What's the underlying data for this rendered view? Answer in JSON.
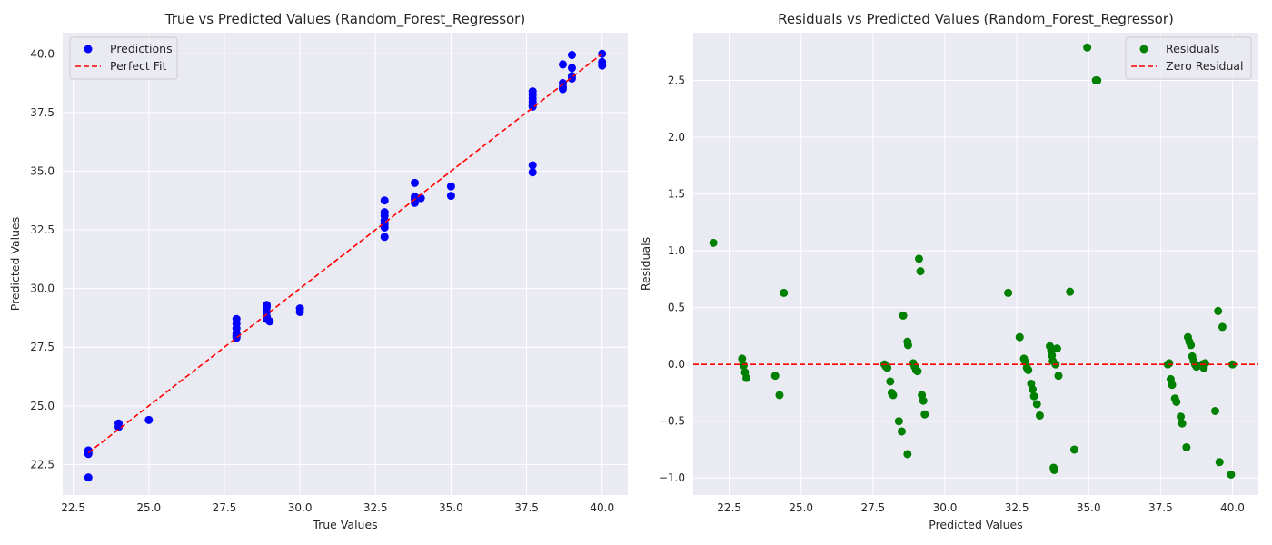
{
  "colors": {
    "axes_background": "#EAEAF2",
    "grid": "#FFFFFF",
    "predictions": "#0000FF",
    "residuals": "#008000",
    "reference_line": "#FF0000",
    "text": "#262626"
  },
  "chart_data": [
    {
      "type": "scatter",
      "title": "True vs Predicted Values (Random_Forest_Regressor)",
      "xlabel": "True Values",
      "ylabel": "Predicted Values",
      "xlim": [
        22.15,
        40.85
      ],
      "ylim": [
        21.2,
        40.9
      ],
      "xticks": [
        "22.5",
        "25.0",
        "27.5",
        "30.0",
        "32.5",
        "35.0",
        "37.5",
        "40.0"
      ],
      "yticks": [
        "22.5",
        "25.0",
        "27.5",
        "30.0",
        "32.5",
        "35.0",
        "37.5",
        "40.0"
      ],
      "grid": true,
      "legend_position": "top-left",
      "legend": [
        "Predictions",
        "Perfect Fit"
      ],
      "series": [
        {
          "name": "Predictions",
          "color": "#0000FF",
          "x": [
            23.0,
            23.0,
            23.0,
            23.0,
            24.0,
            24.0,
            25.0,
            27.9,
            27.9,
            27.9,
            27.9,
            27.9,
            27.9,
            27.9,
            28.9,
            28.9,
            28.9,
            28.9,
            28.9,
            29.0,
            30.0,
            30.0,
            32.8,
            32.8,
            32.8,
            32.8,
            32.8,
            32.8,
            32.8,
            33.8,
            33.8,
            33.8,
            33.8,
            34.0,
            35.0,
            35.0,
            37.7,
            37.7,
            37.7,
            37.7,
            37.7,
            37.7,
            37.7,
            37.7,
            38.7,
            38.7,
            38.7,
            38.7,
            39.0,
            39.0,
            39.0,
            39.0,
            40.0,
            40.0,
            40.0
          ],
          "y": [
            23.1,
            23.0,
            22.95,
            21.95,
            24.25,
            24.1,
            24.4,
            28.7,
            28.5,
            28.3,
            28.1,
            28.0,
            27.95,
            27.9,
            29.3,
            29.2,
            29.0,
            28.8,
            28.7,
            28.6,
            29.15,
            29.0,
            33.75,
            33.25,
            33.1,
            32.9,
            32.75,
            32.6,
            32.2,
            34.5,
            33.9,
            33.8,
            33.65,
            33.85,
            34.35,
            33.95,
            38.4,
            38.25,
            38.1,
            37.95,
            37.8,
            37.75,
            35.25,
            34.95,
            39.55,
            38.75,
            38.6,
            38.5,
            39.95,
            39.4,
            39.05,
            38.95,
            40.0,
            39.65,
            39.5
          ]
        },
        {
          "name": "Perfect Fit",
          "type": "line",
          "color": "#FF0000",
          "dashed": true,
          "x": [
            23.0,
            40.0
          ],
          "y": [
            23.0,
            40.0
          ]
        }
      ]
    },
    {
      "type": "scatter",
      "title": "Residuals vs Predicted Values (Random_Forest_Regressor)",
      "xlabel": "Predicted Values",
      "ylabel": "Residuals",
      "xlim": [
        21.25,
        40.9
      ],
      "ylim": [
        -1.15,
        2.92
      ],
      "xticks": [
        "22.5",
        "25.0",
        "27.5",
        "30.0",
        "32.5",
        "35.0",
        "37.5",
        "40.0"
      ],
      "yticks": [
        "−1.0",
        "−0.5",
        "0.0",
        "0.5",
        "1.0",
        "1.5",
        "2.0",
        "2.5"
      ],
      "grid": true,
      "legend_position": "top-right",
      "legend": [
        "Residuals",
        "Zero Residual"
      ],
      "series": [
        {
          "name": "Residuals",
          "color": "#008000",
          "x": [
            21.95,
            22.95,
            23.0,
            23.05,
            23.1,
            24.1,
            24.25,
            24.4,
            27.9,
            27.95,
            28.0,
            28.1,
            28.15,
            28.2,
            28.4,
            28.5,
            28.55,
            28.7,
            28.7,
            28.72,
            28.9,
            28.95,
            29.0,
            29.05,
            29.1,
            29.15,
            29.2,
            29.25,
            29.3,
            32.2,
            32.6,
            32.75,
            32.8,
            32.85,
            32.9,
            33.0,
            33.05,
            33.1,
            33.2,
            33.3,
            33.65,
            33.7,
            33.72,
            33.75,
            33.78,
            33.8,
            33.85,
            33.9,
            33.95,
            34.35,
            34.5,
            34.95,
            35.25,
            35.3,
            37.75,
            37.8,
            37.85,
            37.9,
            38.0,
            38.05,
            38.2,
            38.25,
            38.4,
            38.45,
            38.5,
            38.55,
            38.6,
            38.65,
            38.7,
            38.75,
            38.95,
            39.0,
            39.05,
            39.4,
            39.5,
            39.55,
            39.65,
            39.95,
            40.0
          ],
          "y": [
            1.07,
            0.05,
            -0.01,
            -0.07,
            -0.12,
            -0.1,
            -0.27,
            0.63,
            0.0,
            -0.02,
            -0.03,
            -0.15,
            -0.25,
            -0.27,
            -0.5,
            -0.59,
            0.43,
            -0.79,
            0.2,
            0.17,
            0.01,
            -0.02,
            -0.05,
            -0.06,
            0.93,
            0.82,
            -0.27,
            -0.32,
            -0.44,
            0.63,
            0.24,
            0.05,
            0.02,
            -0.03,
            -0.05,
            -0.17,
            -0.22,
            -0.28,
            -0.35,
            -0.45,
            0.16,
            0.12,
            0.08,
            0.03,
            -0.91,
            -0.93,
            0.0,
            0.14,
            -0.1,
            0.64,
            -0.75,
            2.79,
            2.5,
            2.5,
            0.0,
            0.01,
            -0.13,
            -0.18,
            -0.3,
            -0.33,
            -0.46,
            -0.52,
            -0.73,
            0.24,
            0.2,
            0.17,
            0.07,
            0.03,
            0.0,
            -0.02,
            0.0,
            -0.03,
            0.01,
            -0.41,
            0.47,
            -0.86,
            0.33,
            -0.97,
            0.0
          ]
        },
        {
          "name": "Zero Residual",
          "type": "hline",
          "color": "#FF0000",
          "dashed": true,
          "y": 0
        }
      ]
    }
  ]
}
